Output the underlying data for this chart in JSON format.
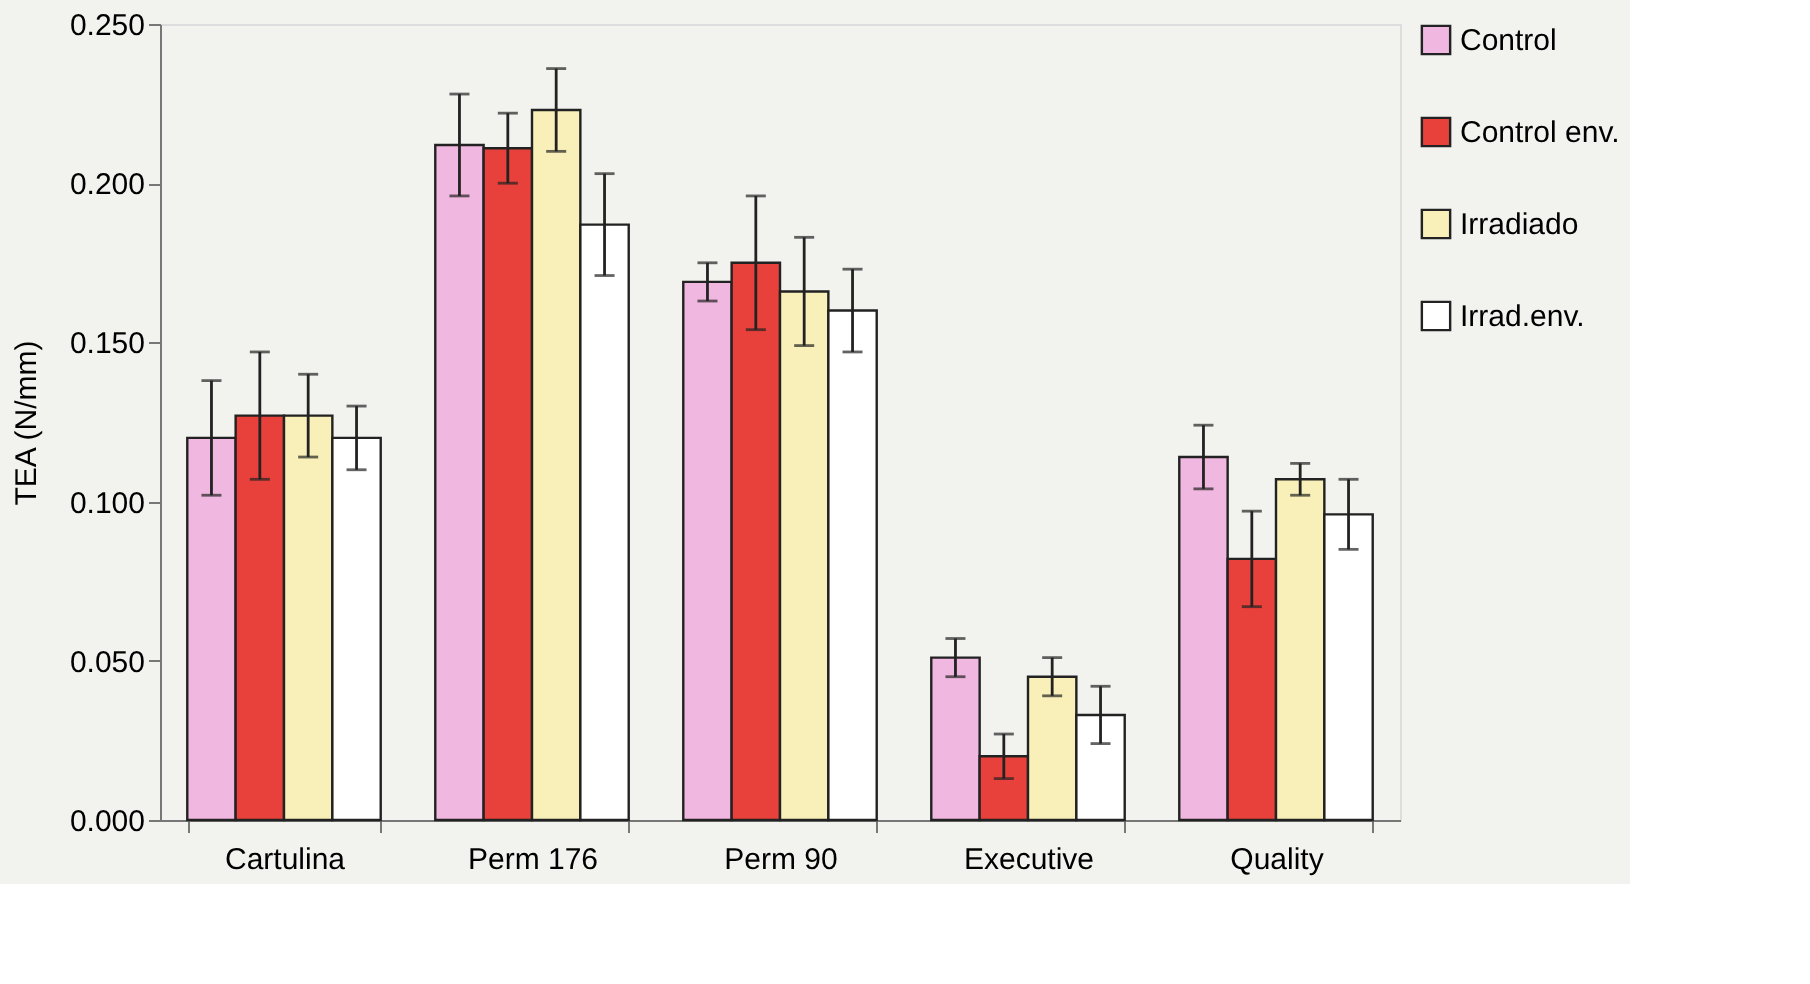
{
  "chart_data": {
    "type": "bar",
    "ylabel": "TEA (N/mm)",
    "categories": [
      "Cartulina",
      "Perm 176",
      "Perm 90",
      "Executive",
      "Quality"
    ],
    "series": [
      {
        "name": "Control",
        "color": "#f0b8e0",
        "values": [
          0.12,
          0.212,
          0.169,
          0.051,
          0.114
        ],
        "errors": [
          0.018,
          0.016,
          0.006,
          0.006,
          0.01
        ]
      },
      {
        "name": "Control env.",
        "color": "#e8403a",
        "values": [
          0.127,
          0.211,
          0.175,
          0.02,
          0.082
        ],
        "errors": [
          0.02,
          0.011,
          0.021,
          0.007,
          0.015
        ]
      },
      {
        "name": "Irradiado",
        "color": "#f8f0b8",
        "values": [
          0.127,
          0.223,
          0.166,
          0.045,
          0.107
        ],
        "errors": [
          0.013,
          0.013,
          0.017,
          0.006,
          0.005
        ]
      },
      {
        "name": "Irrad.env.",
        "color": "#ffffff",
        "values": [
          0.12,
          0.187,
          0.16,
          0.033,
          0.096
        ],
        "errors": [
          0.01,
          0.016,
          0.013,
          0.009,
          0.011
        ]
      }
    ],
    "ylim": [
      0,
      0.25
    ],
    "yticks": [
      {
        "value": 0,
        "label": "0.000"
      },
      {
        "value": 0.05,
        "label": "0.050"
      },
      {
        "value": 0.1,
        "label": "0.100"
      },
      {
        "value": 0.15,
        "label": "0.150"
      },
      {
        "value": 0.2,
        "label": "0.200"
      },
      {
        "value": 0.25,
        "label": "0.250"
      }
    ],
    "grid": false,
    "legend": "right"
  }
}
